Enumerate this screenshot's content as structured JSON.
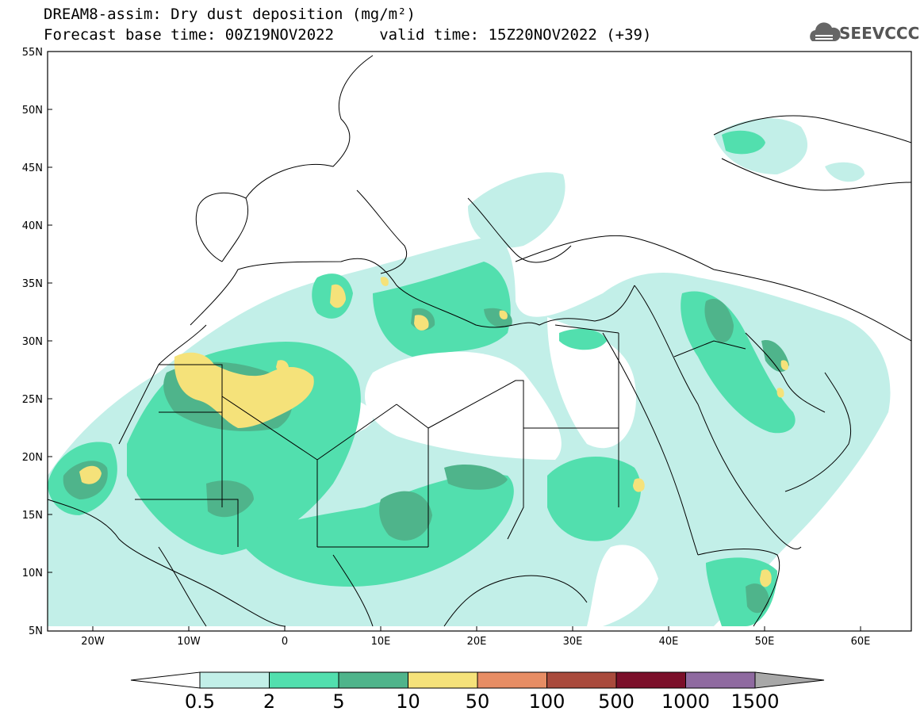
{
  "title": {
    "line1": "DREAM8-assim: Dry dust deposition (mg/m²)",
    "line2": "Forecast base time: 00Z19NOV2022     valid time: 15Z20NOV2022 (+39)"
  },
  "logo": {
    "text": "SEEVCCC",
    "icon": "cloud-logo-icon"
  },
  "axes": {
    "lat_labels": [
      "55N",
      "50N",
      "45N",
      "40N",
      "35N",
      "30N",
      "25N",
      "20N",
      "15N",
      "10N",
      "5N"
    ],
    "lon_labels": [
      "20W",
      "10W",
      "0",
      "10E",
      "20E",
      "30E",
      "40E",
      "50E",
      "60E"
    ]
  },
  "legend": {
    "labels": [
      "0.5",
      "2",
      "5",
      "10",
      "50",
      "100",
      "500",
      "1000",
      "1500"
    ],
    "colors": [
      "#ffffff",
      "#c2efe8",
      "#52dfae",
      "#4fb48b",
      "#f5e27a",
      "#e78d64",
      "#a94a3c",
      "#7b0f2a",
      "#8f6aa0",
      "#a8a8a8"
    ]
  }
}
